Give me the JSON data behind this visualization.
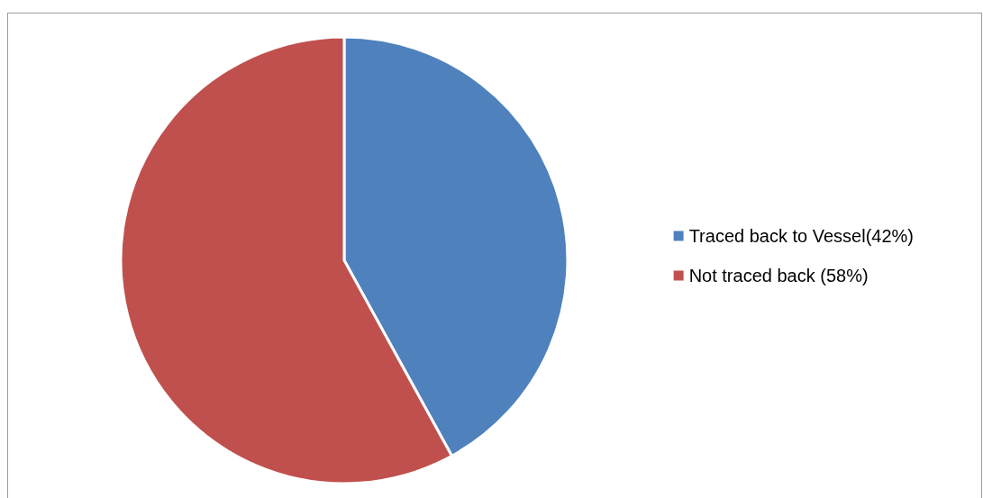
{
  "chart_data": {
    "type": "pie",
    "categories": [
      "Traced back to Vessel(42%)",
      "Not traced back (58%)"
    ],
    "values": [
      42,
      58
    ],
    "colors": [
      "#4f81bd",
      "#c0504d"
    ],
    "legend": "right"
  }
}
